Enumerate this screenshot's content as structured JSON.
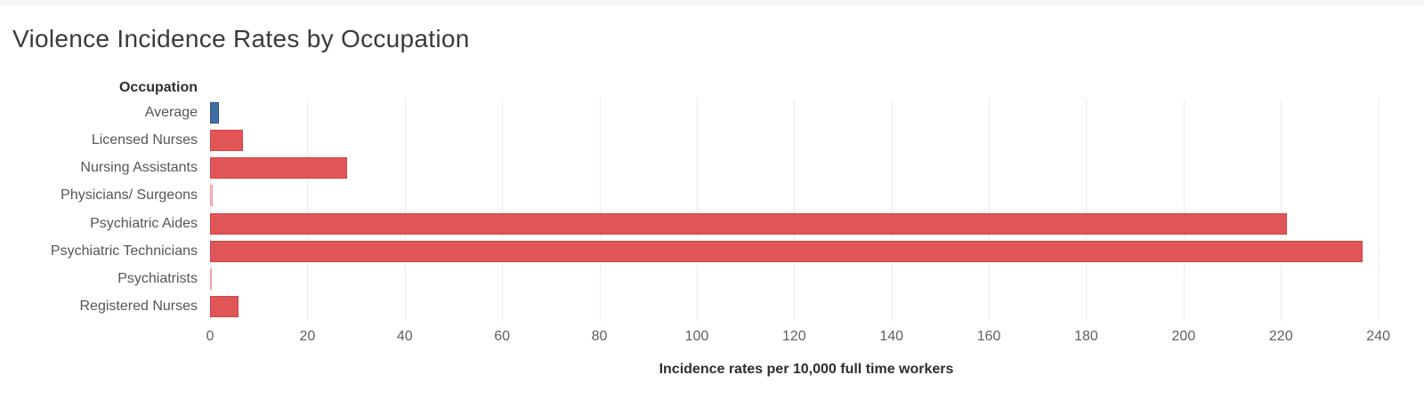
{
  "page": {
    "background": "#ffffff",
    "top_strip_color": "#f6f6f6"
  },
  "title": "Violence Incidence Rates by Occupation",
  "chart_data": {
    "type": "bar",
    "orientation": "horizontal",
    "title": "Violence Incidence Rates by Occupation",
    "categories_header": "Occupation",
    "categories": [
      "Average",
      "Licensed Nurses",
      "Nursing Assistants",
      "Physicians/ Surgeons",
      "Psychiatric Aides",
      "Psychiatric Technicians",
      "Psychiatrists",
      "Registered Nurses"
    ],
    "values": [
      1.9,
      6.7,
      28.1,
      0.5,
      221.2,
      236.7,
      0.4,
      5.9
    ],
    "xlabel": "Incidence rates per 10,000 full time workers",
    "ylabel": "Occupation",
    "xlim": [
      0,
      245
    ],
    "x_ticks": [
      0,
      20,
      40,
      60,
      80,
      100,
      120,
      140,
      160,
      180,
      200,
      220,
      240
    ],
    "grid": "vertical-light",
    "legend": "none",
    "bar_fill_colors": [
      "#426fa1",
      "#e05556",
      "#e05556",
      "#f3bcbd",
      "#e05556",
      "#e05556",
      "#f3bcbd",
      "#e05556"
    ],
    "bar_border_colors": [
      "#2a5385",
      "#d24345",
      "#d24345",
      "#eba2a3",
      "#d24345",
      "#d24345",
      "#eba2a3",
      "#d24345"
    ],
    "gridline_color": "#ececec"
  }
}
